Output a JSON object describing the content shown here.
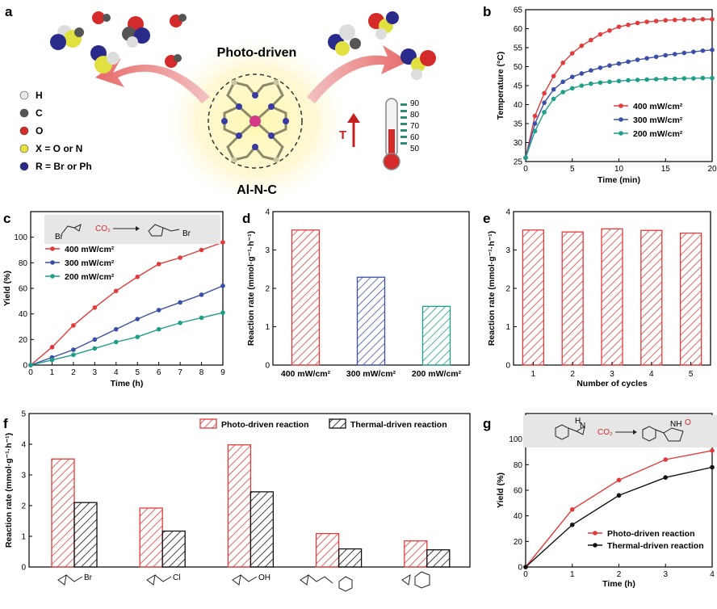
{
  "panel_labels": {
    "a": "a",
    "b": "b",
    "c": "c",
    "d": "d",
    "e": "e",
    "f": "f",
    "g": "g"
  },
  "schematic": {
    "title": "Photo-driven",
    "catalyst": "Al-N-C",
    "temperature_symbol": "T",
    "thermometer_ticks": [
      "90",
      "80",
      "70",
      "60",
      "50"
    ],
    "legend": [
      {
        "symbol": "H",
        "color": "#e8e8e8"
      },
      {
        "symbol": "C",
        "color": "#555555"
      },
      {
        "symbol": "O",
        "color": "#d42a2a"
      },
      {
        "symbol": "X = O or N",
        "color": "#e4e43a"
      },
      {
        "symbol": "R = Br or Ph",
        "color": "#2a2a8a"
      }
    ]
  },
  "reaction_schemes": {
    "c": {
      "reagent": "CO₂",
      "sub1": "Br",
      "sub2": "Br"
    },
    "g": {
      "reagent": "CO₂",
      "sub1": "H",
      "sub1b": "N",
      "sub2": "NH",
      "sub2b": "O"
    }
  },
  "colors": {
    "red": "#e23b3b",
    "blue": "#3b4fa8",
    "green": "#1f9e8a",
    "black": "#111111"
  },
  "chart_data": [
    {
      "panel": "b",
      "type": "line",
      "xlabel": "Time (min)",
      "ylabel": "Temperature (°C)",
      "xlim": [
        0,
        20
      ],
      "ylim": [
        25,
        65
      ],
      "xticks": [
        0,
        5,
        10,
        15,
        20
      ],
      "yticks": [
        25,
        30,
        35,
        40,
        45,
        50,
        55,
        60,
        65
      ],
      "legend_position": "right",
      "x": [
        0,
        1,
        2,
        3,
        4,
        5,
        6,
        7,
        8,
        9,
        10,
        11,
        12,
        13,
        14,
        15,
        16,
        17,
        18,
        19,
        20
      ],
      "series": [
        {
          "name": "400 mW/cm²",
          "color": "#e23b3b",
          "values": [
            26,
            37,
            43,
            47.5,
            51,
            53.5,
            55.5,
            57,
            58.5,
            59.5,
            60.5,
            61,
            61.5,
            61.8,
            62,
            62.2,
            62.3,
            62.4,
            62.4,
            62.5,
            62.5
          ]
        },
        {
          "name": "300 mW/cm²",
          "color": "#3b4fa8",
          "values": [
            26,
            35,
            40.5,
            44,
            46,
            47.3,
            48.2,
            49,
            49.7,
            50.3,
            50.8,
            51.3,
            51.8,
            52.2,
            52.6,
            53,
            53.3,
            53.6,
            53.9,
            54.2,
            54.4
          ]
        },
        {
          "name": "200 mW/cm²",
          "color": "#1f9e8a",
          "values": [
            26,
            33,
            38,
            41.5,
            43.3,
            44.3,
            45,
            45.5,
            45.8,
            46,
            46.2,
            46.4,
            46.5,
            46.6,
            46.7,
            46.8,
            46.8,
            46.9,
            46.9,
            47,
            47
          ]
        }
      ]
    },
    {
      "panel": "c",
      "type": "line",
      "xlabel": "Time (h)",
      "ylabel": "Yield (%)",
      "xlim": [
        0,
        9
      ],
      "ylim": [
        0,
        120
      ],
      "xticks": [
        0,
        1,
        2,
        3,
        4,
        5,
        6,
        7,
        8,
        9
      ],
      "yticks": [
        0,
        20,
        40,
        60,
        80,
        100
      ],
      "legend_position": "top-left",
      "x": [
        0,
        1,
        2,
        3,
        4,
        5,
        6,
        7,
        8,
        9
      ],
      "series": [
        {
          "name": "400 mW/cm²",
          "color": "#e23b3b",
          "values": [
            0,
            14,
            31,
            45,
            58,
            69,
            79,
            84,
            90,
            96
          ]
        },
        {
          "name": "300 mW/cm²",
          "color": "#3b4fa8",
          "values": [
            0,
            6,
            12,
            20,
            28,
            36,
            43,
            49,
            55,
            62
          ]
        },
        {
          "name": "200 mW/cm²",
          "color": "#1f9e8a",
          "values": [
            0,
            4,
            8,
            13,
            18,
            22,
            28,
            33,
            37,
            41
          ]
        }
      ]
    },
    {
      "panel": "d",
      "type": "bar",
      "xlabel": "",
      "ylabel": "Reaction rate (mmol·g⁻¹·h⁻¹)",
      "ylim": [
        0,
        4
      ],
      "yticks": [
        0,
        1,
        2,
        3,
        4
      ],
      "categories": [
        "400 mW/cm²",
        "300 mW/cm²",
        "200 mW/cm²"
      ],
      "values": [
        3.52,
        2.29,
        1.53
      ],
      "colors": [
        "#e23b3b",
        "#3b4fa8",
        "#1f9e8a"
      ]
    },
    {
      "panel": "e",
      "type": "bar",
      "xlabel": "Number of cycles",
      "ylabel": "Reaction rate (mmol·g⁻¹·h⁻¹)",
      "ylim": [
        0,
        4
      ],
      "yticks": [
        0,
        1,
        2,
        3,
        4
      ],
      "categories": [
        "1",
        "2",
        "3",
        "4",
        "5"
      ],
      "values": [
        3.52,
        3.47,
        3.55,
        3.51,
        3.44
      ],
      "colors": [
        "#e23b3b",
        "#e23b3b",
        "#e23b3b",
        "#e23b3b",
        "#e23b3b"
      ]
    },
    {
      "panel": "f",
      "type": "bar",
      "xlabel": "",
      "ylabel": "Reaction rate (mmol·g⁻¹·h⁻¹)",
      "ylim": [
        0,
        5
      ],
      "yticks": [
        0,
        1,
        2,
        3,
        4,
        5
      ],
      "categories": [
        "Br",
        "Cl",
        "OH",
        "phenoxy",
        "phenyl"
      ],
      "legend_position": "top",
      "series": [
        {
          "name": "Photo-driven reaction",
          "color": "#e23b3b",
          "values": [
            3.52,
            1.92,
            3.98,
            1.09,
            0.85
          ]
        },
        {
          "name": "Thermal-driven reaction",
          "color": "#111111",
          "values": [
            2.1,
            1.17,
            2.45,
            0.59,
            0.56
          ]
        }
      ]
    },
    {
      "panel": "g",
      "type": "line",
      "xlabel": "Time (h)",
      "ylabel": "Yield (%)",
      "xlim": [
        0,
        4
      ],
      "ylim": [
        0,
        120
      ],
      "xticks": [
        0,
        1,
        2,
        3,
        4
      ],
      "yticks": [
        0,
        20,
        40,
        60,
        80,
        100
      ],
      "legend_position": "bottom-right",
      "x": [
        0,
        1,
        2,
        3,
        4
      ],
      "series": [
        {
          "name": "Photo-driven reaction",
          "color": "#e23b3b",
          "values": [
            0,
            45,
            68,
            84,
            91
          ]
        },
        {
          "name": "Thermal-driven reaction",
          "color": "#111111",
          "values": [
            0,
            33,
            56,
            70,
            78
          ]
        }
      ]
    }
  ]
}
